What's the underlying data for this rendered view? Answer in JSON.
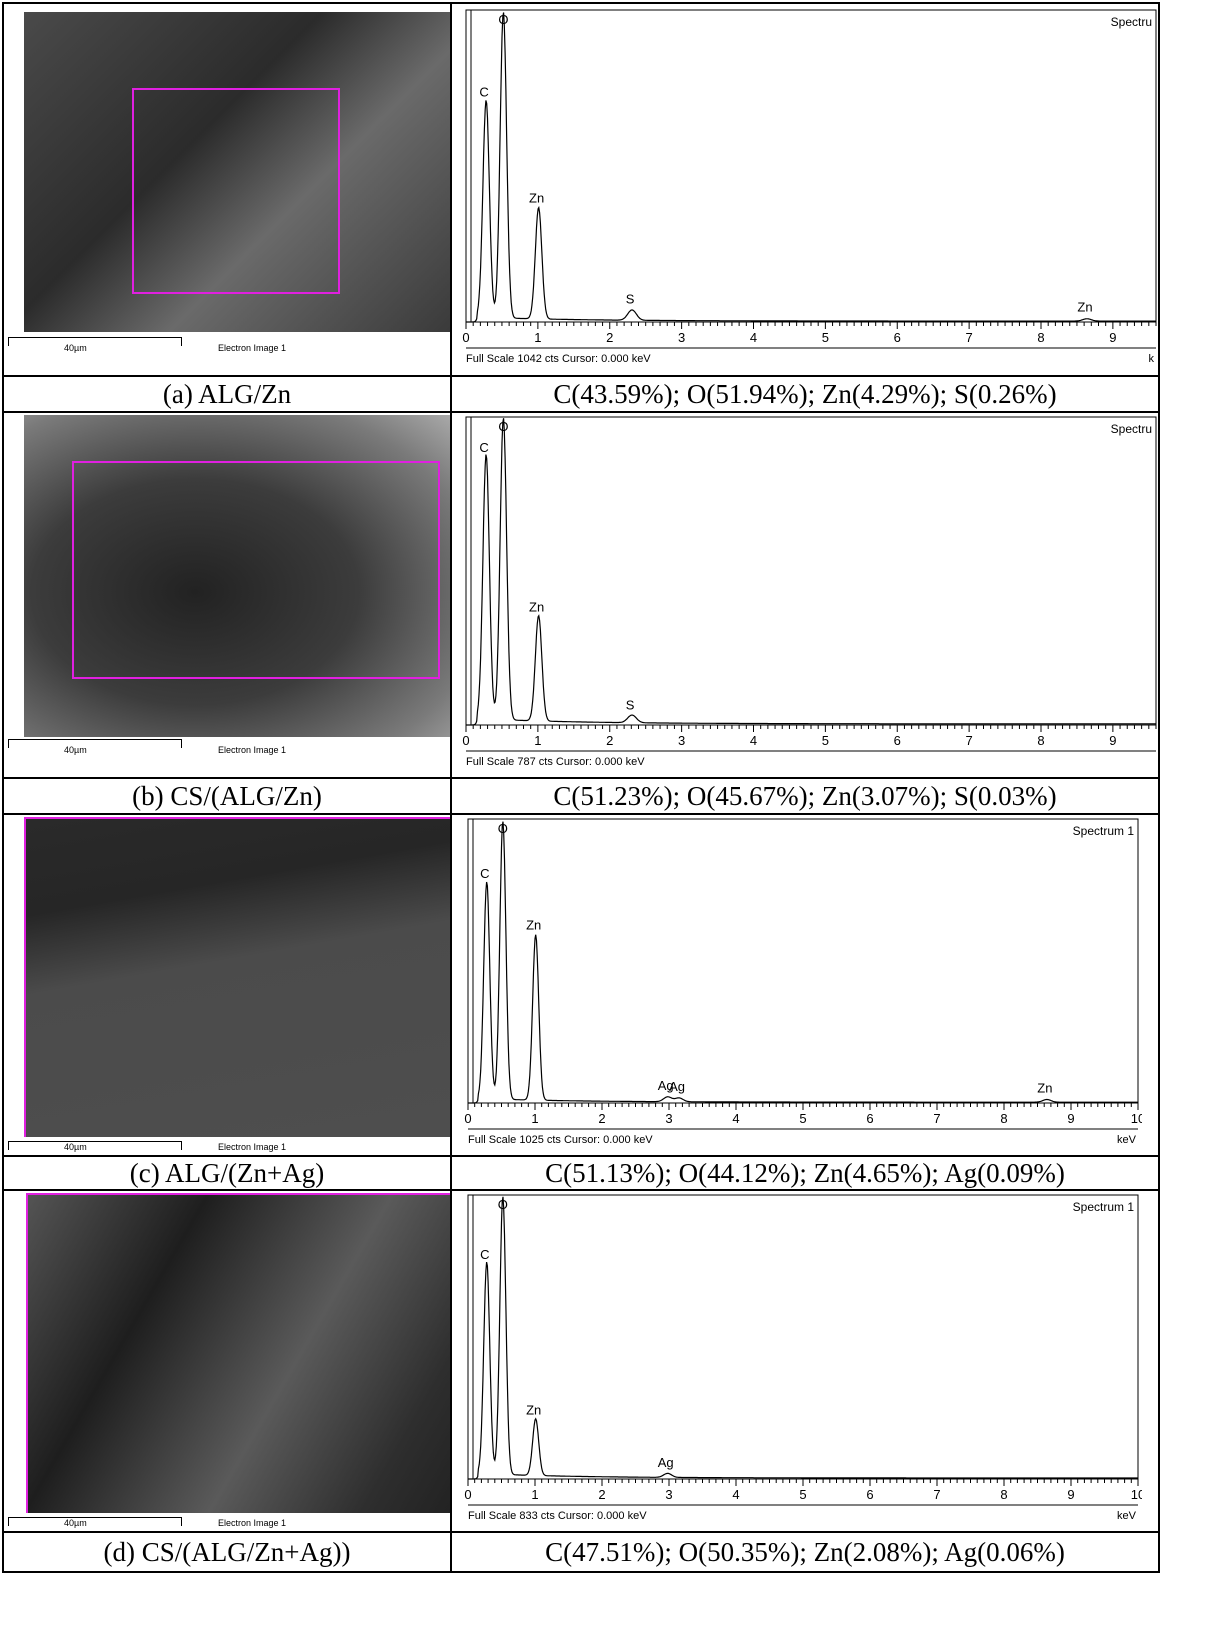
{
  "panels": [
    {
      "caption": "(a)  ALG/Zn",
      "composition": "C(43.59%); O(51.94%); Zn(4.29%); S(0.26%)",
      "scale_label": "40µm",
      "image_label": "Electron Image 1",
      "spectrum_title": "Spectru",
      "footer": "Full Scale 1042 cts  Cursor: 0.000 keV",
      "unit": "k"
    },
    {
      "caption": "(b) CS/(ALG/Zn)",
      "composition": "C(51.23%); O(45.67%); Zn(3.07%); S(0.03%)",
      "scale_label": "40µm",
      "image_label": "Electron Image 1",
      "spectrum_title": "Spectru",
      "footer": "Full Scale 787 cts  Cursor: 0.000 keV",
      "unit": ""
    },
    {
      "caption": "(c)  ALG/(Zn+Ag)",
      "composition": "C(51.13%); O(44.12%); Zn(4.65%); Ag(0.09%)",
      "scale_label": "40µm",
      "image_label": "Electron Image 1",
      "spectrum_title": "Spectrum 1",
      "footer": "Full Scale 1025 cts  Cursor: 0.000 keV",
      "unit": "keV"
    },
    {
      "caption": "(d) CS/(ALG/Zn+Ag))",
      "composition": "C(47.51%); O(50.35%); Zn(2.08%); Ag(0.06%)",
      "scale_label": "40µm",
      "image_label": "Electron Image 1",
      "spectrum_title": "Spectrum 1",
      "footer": "Full Scale 833 cts  Cursor: 0.000 keV",
      "unit": "keV"
    }
  ],
  "chart_data": [
    {
      "type": "line",
      "title": "Spectru",
      "xlabel": "k",
      "xlim": [
        0,
        9.6
      ],
      "ylim": [
        0,
        1042
      ],
      "x_ticks": [
        "0",
        "1",
        "2",
        "3",
        "4",
        "5",
        "6",
        "7",
        "8",
        "9"
      ],
      "peaks": [
        {
          "label": "C",
          "energy": 0.28,
          "counts": 740
        },
        {
          "label": "O",
          "energy": 0.52,
          "counts": 1042
        },
        {
          "label": "Zn",
          "energy": 1.01,
          "counts": 380
        },
        {
          "label": "S",
          "energy": 2.31,
          "counts": 35
        },
        {
          "label": "Zn",
          "energy": 8.64,
          "counts": 8
        }
      ]
    },
    {
      "type": "line",
      "title": "Spectru",
      "xlabel": "",
      "xlim": [
        0,
        9.6
      ],
      "ylim": [
        0,
        787
      ],
      "x_ticks": [
        "0",
        "1",
        "2",
        "3",
        "4",
        "5",
        "6",
        "7",
        "8",
        "9"
      ],
      "peaks": [
        {
          "label": "C",
          "energy": 0.28,
          "counts": 690
        },
        {
          "label": "O",
          "energy": 0.52,
          "counts": 787
        },
        {
          "label": "Zn",
          "energy": 1.01,
          "counts": 275
        },
        {
          "label": "S",
          "energy": 2.31,
          "counts": 20
        }
      ]
    },
    {
      "type": "line",
      "title": "Spectrum 1",
      "xlabel": "keV",
      "xlim": [
        0,
        10
      ],
      "ylim": [
        0,
        1025
      ],
      "x_ticks": [
        "0",
        "1",
        "2",
        "3",
        "4",
        "5",
        "6",
        "7",
        "8",
        "9",
        "10"
      ],
      "peaks": [
        {
          "label": "C",
          "energy": 0.28,
          "counts": 800
        },
        {
          "label": "O",
          "energy": 0.52,
          "counts": 1025
        },
        {
          "label": "Zn",
          "energy": 1.01,
          "counts": 610
        },
        {
          "label": "Ag",
          "energy": 2.98,
          "counts": 18
        },
        {
          "label": "Ag",
          "energy": 3.15,
          "counts": 14
        },
        {
          "label": "Zn",
          "energy": 8.64,
          "counts": 10
        }
      ]
    },
    {
      "type": "line",
      "title": "Spectrum 1",
      "xlabel": "keV",
      "xlim": [
        0,
        10
      ],
      "ylim": [
        0,
        833
      ],
      "x_ticks": [
        "0",
        "1",
        "2",
        "3",
        "4",
        "5",
        "6",
        "7",
        "8",
        "9",
        "10"
      ],
      "peaks": [
        {
          "label": "C",
          "energy": 0.28,
          "counts": 635
        },
        {
          "label": "O",
          "energy": 0.52,
          "counts": 833
        },
        {
          "label": "Zn",
          "energy": 1.01,
          "counts": 170
        },
        {
          "label": "Ag",
          "energy": 2.98,
          "counts": 12
        }
      ]
    }
  ]
}
